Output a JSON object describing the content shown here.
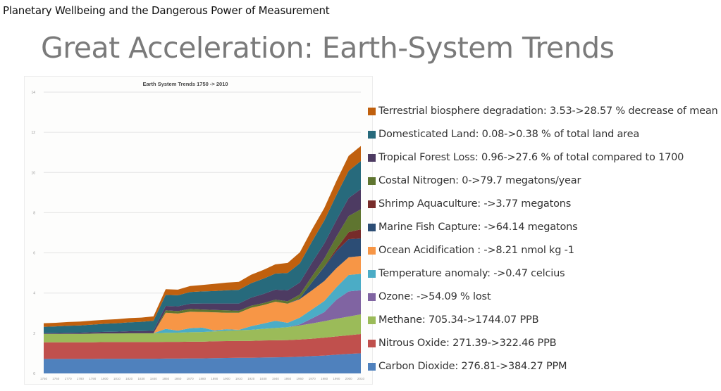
{
  "header": "Planetary Wellbeing and the Dangerous Power of Measurement",
  "slide_title": "Great Acceleration: Earth-System Trends",
  "chart_data": {
    "type": "area",
    "stacked": true,
    "title": "Earth System Trends 1750 -> 2010",
    "xlabel": "",
    "ylabel": "",
    "x": [
      1750,
      1760,
      1770,
      1780,
      1790,
      1800,
      1810,
      1820,
      1830,
      1840,
      1850,
      1860,
      1870,
      1880,
      1890,
      1900,
      1910,
      1920,
      1930,
      1940,
      1950,
      1960,
      1970,
      1980,
      1990,
      2000,
      2010
    ],
    "x_tick_labels": [
      "1750",
      "1760",
      "1770",
      "1780",
      "1790",
      "1800",
      "1810",
      "1820",
      "1830",
      "1840",
      "1850",
      "1860",
      "1870",
      "1880",
      "1890",
      "1900",
      "1910",
      "1920",
      "1930",
      "1940",
      "1950",
      "1960",
      "1970",
      "1980",
      "1990",
      "2000",
      "2010"
    ],
    "y_ticks": [
      0,
      2,
      4,
      6,
      8,
      10,
      12,
      14
    ],
    "ylim": [
      0,
      14
    ],
    "grid": true,
    "legend_position": "right",
    "series": [
      {
        "name": "Carbon Dioxide: 276.81->384.27 PPM",
        "color": "#4f81bd",
        "values": [
          0.72,
          0.72,
          0.72,
          0.72,
          0.72,
          0.73,
          0.73,
          0.73,
          0.73,
          0.73,
          0.74,
          0.74,
          0.75,
          0.75,
          0.76,
          0.77,
          0.78,
          0.78,
          0.79,
          0.8,
          0.81,
          0.83,
          0.86,
          0.89,
          0.93,
          0.97,
          1.0
        ]
      },
      {
        "name": "Nitrous Oxide: 271.39->322.46 PPB",
        "color": "#c0504d",
        "values": [
          0.83,
          0.83,
          0.83,
          0.83,
          0.83,
          0.83,
          0.83,
          0.83,
          0.83,
          0.83,
          0.83,
          0.83,
          0.83,
          0.83,
          0.84,
          0.84,
          0.84,
          0.84,
          0.85,
          0.85,
          0.85,
          0.86,
          0.87,
          0.89,
          0.91,
          0.93,
          0.96
        ]
      },
      {
        "name": "Methane: 705.34->1744.07 PPB",
        "color": "#9bbb59",
        "values": [
          0.42,
          0.42,
          0.42,
          0.42,
          0.43,
          0.43,
          0.43,
          0.44,
          0.44,
          0.44,
          0.45,
          0.46,
          0.47,
          0.48,
          0.49,
          0.51,
          0.53,
          0.55,
          0.58,
          0.61,
          0.64,
          0.7,
          0.76,
          0.82,
          0.88,
          0.93,
          0.98
        ]
      },
      {
        "name": "Ozone: ->54.09 % lost",
        "color": "#8064a2",
        "values": [
          0,
          0,
          0,
          0,
          0,
          0,
          0,
          0,
          0,
          0,
          0,
          0,
          0,
          0,
          0,
          0,
          0,
          0,
          0,
          0,
          0,
          0.05,
          0.25,
          0.45,
          0.95,
          1.25,
          1.2
        ]
      },
      {
        "name": "Temperature anomaly: ->0.47 celcius",
        "color": "#4bacc6",
        "values": [
          0,
          0,
          0,
          0,
          0,
          0,
          0,
          0,
          0,
          0,
          0.2,
          0.1,
          0.2,
          0.22,
          0.05,
          0.08,
          0.02,
          0.18,
          0.26,
          0.36,
          0.22,
          0.34,
          0.45,
          0.55,
          0.62,
          0.82,
          0.82
        ]
      },
      {
        "name": "Ocean Acidification : ->8.21 nmol kg -1",
        "color": "#f79646",
        "values": [
          0,
          0,
          0,
          0,
          0,
          0,
          0,
          0,
          0,
          0,
          0.8,
          0.85,
          0.82,
          0.78,
          0.9,
          0.82,
          0.85,
          0.92,
          0.92,
          0.95,
          0.95,
          0.92,
          0.95,
          1.0,
          0.95,
          0.88,
          0.88
        ]
      },
      {
        "name": "Marine Fish Capture: ->64.14 megatons",
        "color": "#2c4d75",
        "values": [
          0,
          0,
          0,
          0,
          0,
          0,
          0,
          0,
          0,
          0,
          0,
          0,
          0,
          0,
          0,
          0,
          0,
          0,
          0,
          0,
          0,
          0.05,
          0.4,
          0.7,
          0.85,
          0.9,
          0.88
        ]
      },
      {
        "name": "Shrimp Aquaculture: ->3.77 megatons",
        "color": "#772c2a",
        "values": [
          0,
          0,
          0,
          0,
          0,
          0,
          0,
          0,
          0,
          0,
          0,
          0,
          0,
          0,
          0,
          0,
          0,
          0,
          0,
          0,
          0,
          0,
          0,
          0.02,
          0.12,
          0.35,
          0.45
        ]
      },
      {
        "name": "Costal Nitrogen: 0->79.7 megatons/year",
        "color": "#5f7530",
        "values": [
          0,
          0,
          0,
          0,
          0,
          0,
          0,
          0,
          0,
          0,
          0.12,
          0.12,
          0.14,
          0.12,
          0.12,
          0.12,
          0.1,
          0.1,
          0.1,
          0.1,
          0.12,
          0.18,
          0.3,
          0.4,
          0.6,
          0.8,
          1.0
        ]
      },
      {
        "name": "Tropical Forest Loss: 0.96->27.6 % of total compared to 1700",
        "color": "#4d3b62",
        "values": [
          0.03,
          0.04,
          0.05,
          0.06,
          0.07,
          0.08,
          0.09,
          0.1,
          0.11,
          0.12,
          0.22,
          0.24,
          0.26,
          0.3,
          0.32,
          0.34,
          0.36,
          0.4,
          0.45,
          0.5,
          0.55,
          0.6,
          0.68,
          0.74,
          0.82,
          0.9,
          1.0
        ]
      },
      {
        "name": "Domesticated Land: 0.08->0.38 % of total land area",
        "color": "#276a7c",
        "values": [
          0.32,
          0.33,
          0.35,
          0.36,
          0.38,
          0.4,
          0.42,
          0.44,
          0.46,
          0.5,
          0.55,
          0.55,
          0.58,
          0.6,
          0.62,
          0.66,
          0.68,
          0.72,
          0.76,
          0.8,
          0.86,
          0.95,
          1.05,
          1.15,
          1.25,
          1.35,
          1.4
        ]
      },
      {
        "name": "Terrestrial biosphere degradation: 3.53->28.57 % decrease of mean",
        "color": "#c0600e",
        "values": [
          0.18,
          0.18,
          0.19,
          0.19,
          0.2,
          0.2,
          0.2,
          0.21,
          0.21,
          0.22,
          0.28,
          0.28,
          0.3,
          0.32,
          0.36,
          0.38,
          0.4,
          0.42,
          0.44,
          0.46,
          0.5,
          0.55,
          0.6,
          0.62,
          0.7,
          0.75,
          0.75
        ]
      }
    ]
  },
  "legend": [
    {
      "label": "Terrestrial biosphere degradation: 3.53->28.57 % decrease of mean",
      "color": "#c0600e"
    },
    {
      "label": "Domesticated Land: 0.08->0.38 % of total land area",
      "color": "#276a7c"
    },
    {
      "label": "Tropical Forest Loss: 0.96->27.6 % of total compared to 1700",
      "color": "#4d3b62"
    },
    {
      "label": "Costal Nitrogen: 0->79.7 megatons/year",
      "color": "#5f7530"
    },
    {
      "label": "Shrimp Aquaculture: ->3.77 megatons",
      "color": "#772c2a"
    },
    {
      "label": "Marine Fish Capture: ->64.14 megatons",
      "color": "#2c4d75"
    },
    {
      "label": "Ocean Acidification : ->8.21 nmol kg -1",
      "color": "#f79646"
    },
    {
      "label": "Temperature anomaly: ->0.47 celcius",
      "color": "#4bacc6"
    },
    {
      "label": "Ozone: ->54.09 % lost",
      "color": "#8064a2"
    },
    {
      "label": "Methane: 705.34->1744.07 PPB",
      "color": "#9bbb59"
    },
    {
      "label": "Nitrous Oxide: 271.39->322.46 PPB",
      "color": "#c0504d"
    },
    {
      "label": "Carbon Dioxide: 276.81->384.27 PPM",
      "color": "#4f81bd"
    }
  ]
}
